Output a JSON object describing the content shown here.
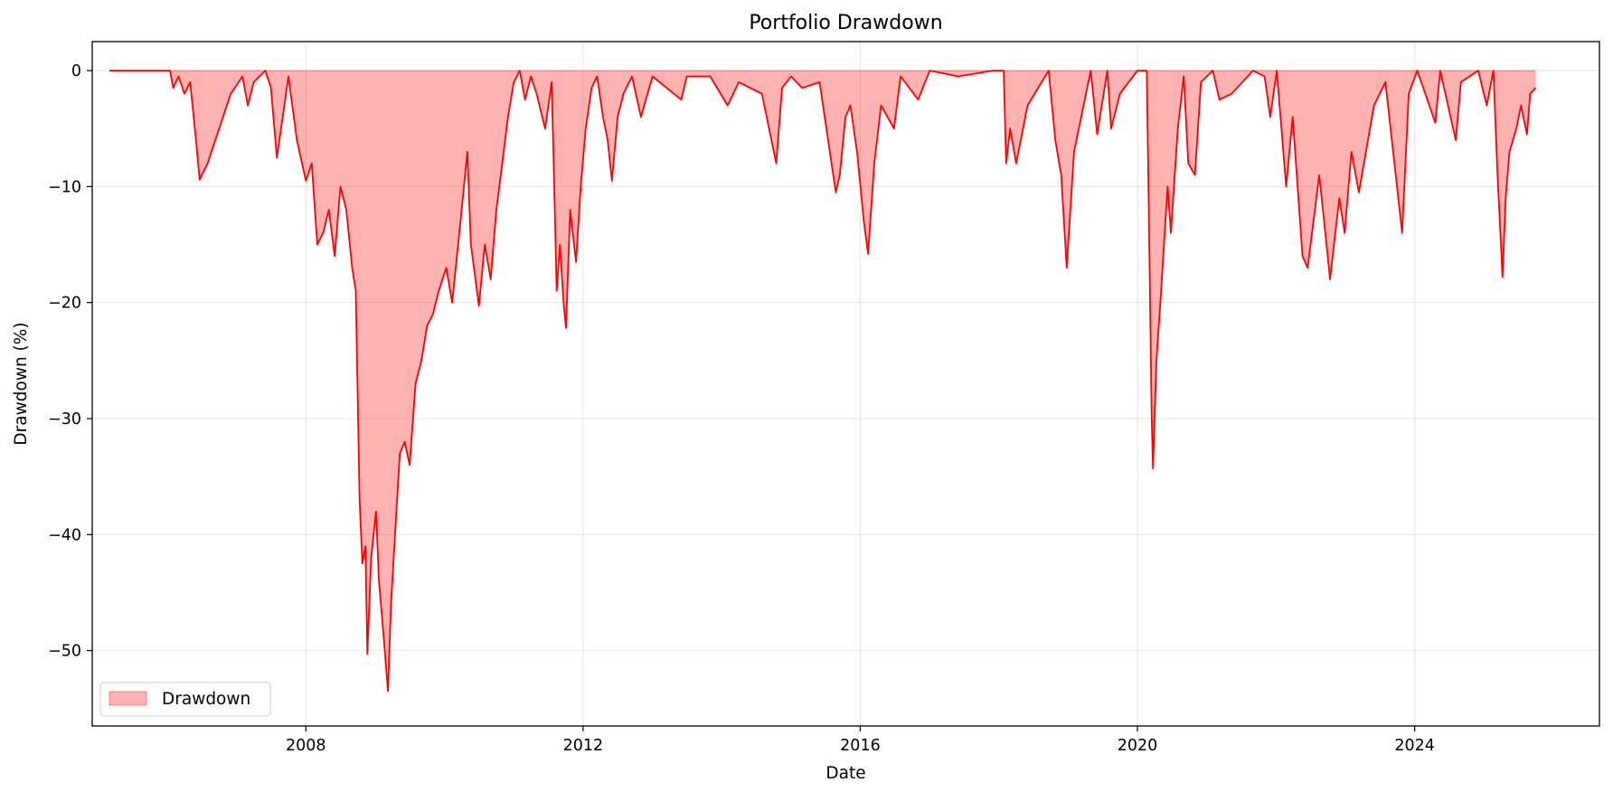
{
  "chart_data": {
    "type": "area",
    "title": "Portfolio Drawdown",
    "xlabel": "Date",
    "ylabel": "Drawdown (%)",
    "xlim": [
      "2004-12-01",
      "2026-09-01"
    ],
    "ylim": [
      -56.5,
      2.5
    ],
    "x_ticks": [
      "2008-01-01",
      "2012-01-01",
      "2016-01-01",
      "2020-01-01",
      "2024-01-01"
    ],
    "x_tick_labels": [
      "2008",
      "2012",
      "2016",
      "2020",
      "2024"
    ],
    "y_ticks": [
      0,
      -10,
      -20,
      -30,
      -40,
      -50
    ],
    "y_tick_labels": [
      "0",
      "−10",
      "−20",
      "−30",
      "−40",
      "−50"
    ],
    "grid": true,
    "legend": {
      "placement": "lower-left",
      "entries": [
        "Drawdown"
      ]
    },
    "colors": {
      "line": "#ff0000",
      "fill": "#ff0000",
      "fill_opacity": 0.3
    },
    "series": [
      {
        "name": "Drawdown",
        "points": [
          [
            "2005-03-01",
            0
          ],
          [
            "2005-09-01",
            0
          ],
          [
            "2006-01-15",
            0
          ],
          [
            "2006-02-01",
            -1.5
          ],
          [
            "2006-03-01",
            -0.5
          ],
          [
            "2006-04-01",
            -2.0
          ],
          [
            "2006-05-01",
            -1.0
          ],
          [
            "2006-06-01",
            -6.0
          ],
          [
            "2006-06-20",
            -9.4
          ],
          [
            "2006-08-01",
            -8.0
          ],
          [
            "2006-10-01",
            -5.0
          ],
          [
            "2006-12-01",
            -2.0
          ],
          [
            "2007-02-01",
            -0.5
          ],
          [
            "2007-03-01",
            -3.0
          ],
          [
            "2007-04-01",
            -1.0
          ],
          [
            "2007-06-01",
            0
          ],
          [
            "2007-07-01",
            -1.5
          ],
          [
            "2007-08-01",
            -7.5
          ],
          [
            "2007-09-01",
            -4.0
          ],
          [
            "2007-10-01",
            -0.5
          ],
          [
            "2007-11-15",
            -6.0
          ],
          [
            "2008-01-01",
            -9.5
          ],
          [
            "2008-02-01",
            -8.0
          ],
          [
            "2008-03-01",
            -15.0
          ],
          [
            "2008-04-01",
            -14.0
          ],
          [
            "2008-05-01",
            -12.0
          ],
          [
            "2008-06-01",
            -16.0
          ],
          [
            "2008-07-01",
            -10.0
          ],
          [
            "2008-08-01",
            -12.0
          ],
          [
            "2008-09-01",
            -17.0
          ],
          [
            "2008-09-20",
            -19.0
          ],
          [
            "2008-10-10",
            -37.0
          ],
          [
            "2008-10-25",
            -42.5
          ],
          [
            "2008-11-10",
            -41.0
          ],
          [
            "2008-11-20",
            -50.3
          ],
          [
            "2008-12-10",
            -42.0
          ],
          [
            "2009-01-05",
            -38.0
          ],
          [
            "2009-01-20",
            -44.0
          ],
          [
            "2009-02-10",
            -48.0
          ],
          [
            "2009-03-09",
            -53.5
          ],
          [
            "2009-03-25",
            -46.0
          ],
          [
            "2009-04-15",
            -40.0
          ],
          [
            "2009-05-10",
            -33.0
          ],
          [
            "2009-06-05",
            -32.0
          ],
          [
            "2009-07-01",
            -34.0
          ],
          [
            "2009-08-01",
            -27.0
          ],
          [
            "2009-09-01",
            -25.0
          ],
          [
            "2009-10-01",
            -22.0
          ],
          [
            "2009-11-01",
            -21.0
          ],
          [
            "2009-12-01",
            -19.0
          ],
          [
            "2010-01-10",
            -17.0
          ],
          [
            "2010-02-10",
            -20.0
          ],
          [
            "2010-04-01",
            -12.0
          ],
          [
            "2010-05-01",
            -7.0
          ],
          [
            "2010-05-20",
            -15.0
          ],
          [
            "2010-07-01",
            -20.3
          ],
          [
            "2010-08-01",
            -15.0
          ],
          [
            "2010-09-01",
            -18.0
          ],
          [
            "2010-10-01",
            -12.0
          ],
          [
            "2010-11-01",
            -8.0
          ],
          [
            "2010-12-01",
            -4.0
          ],
          [
            "2011-01-01",
            -1.0
          ],
          [
            "2011-02-01",
            0
          ],
          [
            "2011-03-01",
            -2.5
          ],
          [
            "2011-04-01",
            -0.5
          ],
          [
            "2011-05-01",
            -2.0
          ],
          [
            "2011-06-15",
            -5.0
          ],
          [
            "2011-07-20",
            -1.0
          ],
          [
            "2011-08-05",
            -12.0
          ],
          [
            "2011-08-15",
            -19.0
          ],
          [
            "2011-09-01",
            -15.0
          ],
          [
            "2011-09-20",
            -20.0
          ],
          [
            "2011-10-03",
            -22.2
          ],
          [
            "2011-10-25",
            -12.0
          ],
          [
            "2011-11-25",
            -16.5
          ],
          [
            "2011-12-20",
            -10.0
          ],
          [
            "2012-01-15",
            -5.0
          ],
          [
            "2012-02-15",
            -1.5
          ],
          [
            "2012-03-15",
            -0.5
          ],
          [
            "2012-04-15",
            -4.0
          ],
          [
            "2012-05-10",
            -6.0
          ],
          [
            "2012-06-01",
            -9.5
          ],
          [
            "2012-07-01",
            -4.0
          ],
          [
            "2012-08-01",
            -2.0
          ],
          [
            "2012-09-15",
            -0.5
          ],
          [
            "2012-11-01",
            -4.0
          ],
          [
            "2013-01-01",
            -0.5
          ],
          [
            "2013-06-01",
            -2.5
          ],
          [
            "2013-07-01",
            -0.5
          ],
          [
            "2013-11-01",
            -0.5
          ],
          [
            "2014-02-01",
            -3.0
          ],
          [
            "2014-04-01",
            -1.0
          ],
          [
            "2014-08-01",
            -2.0
          ],
          [
            "2014-10-15",
            -8.0
          ],
          [
            "2014-11-15",
            -1.5
          ],
          [
            "2015-01-01",
            -0.5
          ],
          [
            "2015-03-01",
            -1.5
          ],
          [
            "2015-06-01",
            -1.0
          ],
          [
            "2015-08-25",
            -10.5
          ],
          [
            "2015-09-15",
            -9.0
          ],
          [
            "2015-10-15",
            -4.0
          ],
          [
            "2015-11-10",
            -3.0
          ],
          [
            "2015-12-15",
            -7.0
          ],
          [
            "2016-01-20",
            -13.0
          ],
          [
            "2016-02-11",
            -15.8
          ],
          [
            "2016-03-15",
            -8.0
          ],
          [
            "2016-04-20",
            -3.0
          ],
          [
            "2016-06-27",
            -5.0
          ],
          [
            "2016-08-01",
            -0.5
          ],
          [
            "2016-11-01",
            -2.5
          ],
          [
            "2017-01-01",
            0
          ],
          [
            "2017-06-01",
            -0.5
          ],
          [
            "2017-12-01",
            0
          ],
          [
            "2018-01-26",
            0
          ],
          [
            "2018-02-08",
            -8.0
          ],
          [
            "2018-03-01",
            -5.0
          ],
          [
            "2018-04-02",
            -8.0
          ],
          [
            "2018-06-01",
            -3.0
          ],
          [
            "2018-09-20",
            0
          ],
          [
            "2018-10-25",
            -6.0
          ],
          [
            "2018-11-25",
            -9.0
          ],
          [
            "2018-12-24",
            -17.0
          ],
          [
            "2019-02-01",
            -7.0
          ],
          [
            "2019-04-30",
            0
          ],
          [
            "2019-06-03",
            -5.5
          ],
          [
            "2019-07-26",
            0
          ],
          [
            "2019-08-15",
            -5.0
          ],
          [
            "2019-10-01",
            -2.0
          ],
          [
            "2020-01-01",
            0
          ],
          [
            "2020-02-19",
            0
          ],
          [
            "2020-03-01",
            -12.0
          ],
          [
            "2020-03-16",
            -30.0
          ],
          [
            "2020-03-23",
            -34.3
          ],
          [
            "2020-04-10",
            -25.0
          ],
          [
            "2020-05-01",
            -20.0
          ],
          [
            "2020-06-08",
            -10.0
          ],
          [
            "2020-06-25",
            -14.0
          ],
          [
            "2020-08-01",
            -5.0
          ],
          [
            "2020-09-01",
            -0.5
          ],
          [
            "2020-09-25",
            -8.0
          ],
          [
            "2020-10-30",
            -9.0
          ],
          [
            "2020-12-01",
            -1.0
          ],
          [
            "2021-02-01",
            0
          ],
          [
            "2021-03-08",
            -2.5
          ],
          [
            "2021-05-12",
            -2.0
          ],
          [
            "2021-09-01",
            0
          ],
          [
            "2021-11-01",
            -0.5
          ],
          [
            "2021-12-01",
            -4.0
          ],
          [
            "2022-01-04",
            0
          ],
          [
            "2022-02-23",
            -10.0
          ],
          [
            "2022-03-29",
            -4.0
          ],
          [
            "2022-05-20",
            -16.0
          ],
          [
            "2022-06-16",
            -17.0
          ],
          [
            "2022-08-16",
            -9.0
          ],
          [
            "2022-09-30",
            -16.0
          ],
          [
            "2022-10-12",
            -18.0
          ],
          [
            "2022-11-30",
            -11.0
          ],
          [
            "2022-12-28",
            -14.0
          ],
          [
            "2023-02-02",
            -7.0
          ],
          [
            "2023-03-13",
            -10.5
          ],
          [
            "2023-06-01",
            -3.0
          ],
          [
            "2023-07-31",
            -1.0
          ],
          [
            "2023-10-27",
            -14.0
          ],
          [
            "2023-12-01",
            -2.0
          ],
          [
            "2024-01-15",
            0
          ],
          [
            "2024-04-19",
            -4.5
          ],
          [
            "2024-05-15",
            0
          ],
          [
            "2024-08-05",
            -6.0
          ],
          [
            "2024-09-01",
            -1.0
          ],
          [
            "2024-12-01",
            0
          ],
          [
            "2025-01-15",
            -3.0
          ],
          [
            "2025-02-19",
            0
          ],
          [
            "2025-03-13",
            -9.0
          ],
          [
            "2025-04-08",
            -17.8
          ],
          [
            "2025-04-25",
            -11.0
          ],
          [
            "2025-05-15",
            -7.0
          ],
          [
            "2025-06-20",
            -5.0
          ],
          [
            "2025-07-15",
            -3.0
          ],
          [
            "2025-08-15",
            -5.5
          ],
          [
            "2025-09-01",
            -2.0
          ],
          [
            "2025-09-30",
            -1.5
          ]
        ]
      }
    ]
  }
}
